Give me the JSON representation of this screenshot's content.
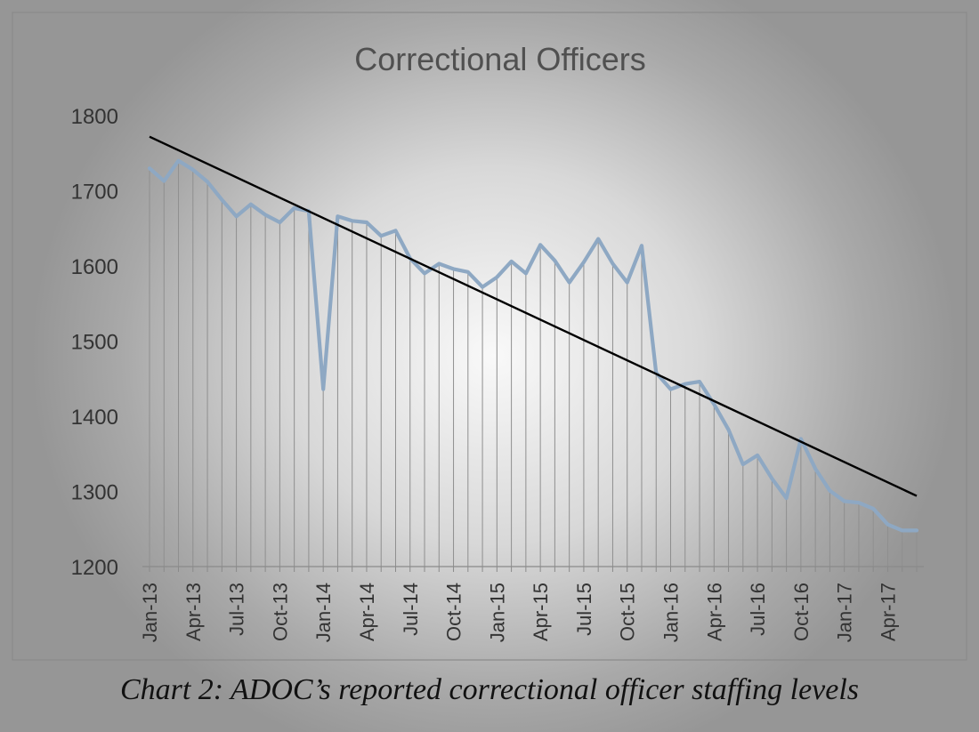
{
  "caption": "Chart 2: ADOC’s reported correctional officer staffing levels",
  "chart_data": {
    "type": "line",
    "title": "Correctional Officers",
    "xlabel": "",
    "ylabel": "",
    "ylim": [
      1200,
      1800
    ],
    "yticks": [
      1200,
      1300,
      1400,
      1500,
      1600,
      1700,
      1800
    ],
    "x": [
      "Jan-13",
      "Feb-13",
      "Mar-13",
      "Apr-13",
      "May-13",
      "Jun-13",
      "Jul-13",
      "Aug-13",
      "Sep-13",
      "Oct-13",
      "Nov-13",
      "Dec-13",
      "Jan-14",
      "Feb-14",
      "Mar-14",
      "Apr-14",
      "May-14",
      "Jun-14",
      "Jul-14",
      "Aug-14",
      "Sep-14",
      "Oct-14",
      "Nov-14",
      "Dec-14",
      "Jan-15",
      "Feb-15",
      "Mar-15",
      "Apr-15",
      "May-15",
      "Jun-15",
      "Jul-15",
      "Aug-15",
      "Sep-15",
      "Oct-15",
      "Nov-15",
      "Dec-15",
      "Jan-16",
      "Feb-16",
      "Mar-16",
      "Apr-16",
      "May-16",
      "Jun-16",
      "Jul-16",
      "Aug-16",
      "Sep-16",
      "Oct-16",
      "Nov-16",
      "Dec-16",
      "Jan-17",
      "Feb-17",
      "Mar-17",
      "Apr-17",
      "May-17",
      "Jun-17"
    ],
    "xtick_labels": [
      "Jan-13",
      "Apr-13",
      "Jul-13",
      "Oct-13",
      "Jan-14",
      "Apr-14",
      "Jul-14",
      "Oct-14",
      "Jan-15",
      "Apr-15",
      "Jul-15",
      "Oct-15",
      "Jan-16",
      "Apr-16",
      "Jul-16",
      "Oct-16",
      "Jan-17",
      "Apr-17"
    ],
    "series": [
      {
        "name": "Correctional Officers",
        "color": "#8ea8c3",
        "values": [
          1730,
          1713,
          1740,
          1728,
          1712,
          1688,
          1666,
          1682,
          1668,
          1658,
          1677,
          1673,
          1436,
          1666,
          1660,
          1658,
          1640,
          1647,
          1610,
          1590,
          1603,
          1596,
          1592,
          1572,
          1585,
          1606,
          1590,
          1628,
          1607,
          1578,
          1605,
          1636,
          1603,
          1578,
          1627,
          1458,
          1436,
          1443,
          1446,
          1416,
          1382,
          1336,
          1348,
          1317,
          1291,
          1370,
          1330,
          1301,
          1287,
          1285,
          1277,
          1256,
          1248,
          1248
        ]
      }
    ],
    "trendline": {
      "name": "Linear trend",
      "color": "#000000",
      "start": 1772,
      "end": 1294
    },
    "drop_lines": true,
    "grid": false,
    "legend": "none"
  }
}
